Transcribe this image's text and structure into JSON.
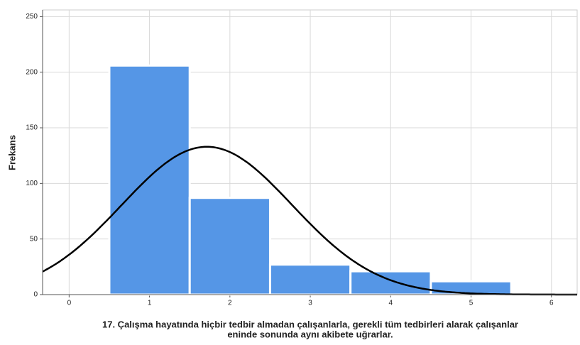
{
  "chart_data": {
    "type": "histogram",
    "ylabel": "Frekans",
    "xlabel": [
      "17. Çalışma hayatında hiçbir tedbir almadan çalışanlarla, gerekli tüm tedbirleri alarak çalışanlar",
      "eninde sonunda aynı akibete uğrarlar."
    ],
    "bins": [
      0.5,
      1.5,
      2.5,
      3.5,
      4.5,
      5.5
    ],
    "values": [
      206,
      87,
      27,
      21,
      12
    ],
    "color": "#5596e6",
    "xlim": [
      -0.33,
      6.32
    ],
    "xticks": [
      0,
      1,
      2,
      3,
      4,
      5,
      6
    ],
    "ylim": [
      0,
      256
    ],
    "yticks": [
      0,
      50,
      100,
      150,
      200,
      250
    ],
    "grid": true
  }
}
